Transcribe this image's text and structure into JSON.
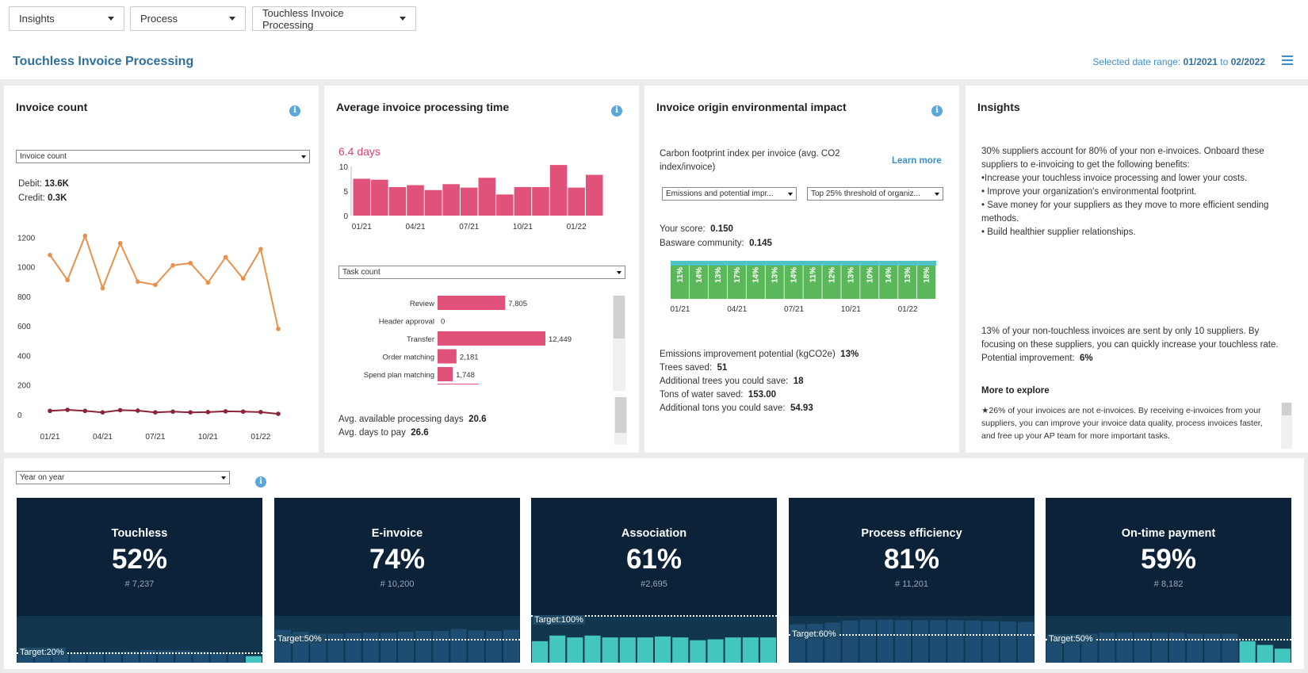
{
  "nav": {
    "dropdowns": [
      "Insights",
      "Process",
      "Touchless Invoice Processing"
    ]
  },
  "header": {
    "title": "Touchless Invoice Processing",
    "date_label": "Selected date range:",
    "date_from": "01/2021",
    "date_to_sep": "to",
    "date_to": "02/2022"
  },
  "invoice_count": {
    "title": "Invoice count",
    "select": "Invoice count",
    "debit_label": "Debit:",
    "debit_value": "13.6K",
    "credit_label": "Credit:",
    "credit_value": "0.3K",
    "chart_data": {
      "type": "line",
      "x": [
        "01/21",
        "02/21",
        "03/21",
        "04/21",
        "05/21",
        "06/21",
        "07/21",
        "08/21",
        "09/21",
        "10/21",
        "11/21",
        "12/21",
        "01/22",
        "02/22"
      ],
      "x_ticks": [
        "01/21",
        "04/21",
        "07/21",
        "10/21",
        "01/22"
      ],
      "y_ticks": [
        "0",
        "200",
        "400",
        "600",
        "800",
        "1000",
        "1200"
      ],
      "ylim": [
        0,
        1250
      ],
      "series": [
        {
          "values": [
            1080,
            910,
            1210,
            855,
            1160,
            900,
            878,
            1010,
            1025,
            893,
            1065,
            920,
            1120,
            580
          ],
          "color": "#e8914a"
        },
        {
          "values": [
            25,
            32,
            25,
            15,
            30,
            27,
            15,
            20,
            15,
            17,
            22,
            20,
            17,
            5
          ],
          "color": "#8b2339"
        }
      ]
    }
  },
  "processing_time": {
    "title": "Average invoice processing time",
    "headline": "6.4 days",
    "chart_data": {
      "type": "bar",
      "categories": [
        "01/21",
        "02/21",
        "03/21",
        "04/21",
        "05/21",
        "06/21",
        "07/21",
        "08/21",
        "09/21",
        "10/21",
        "11/21",
        "12/21",
        "01/22",
        "02/22"
      ],
      "x_ticks": [
        "01/21",
        "04/21",
        "07/21",
        "10/21",
        "01/22"
      ],
      "y_ticks": [
        "0",
        "5",
        "10"
      ],
      "ylim": [
        0,
        10
      ],
      "values": [
        7.5,
        7.3,
        5.8,
        6.2,
        5.2,
        6.4,
        5.7,
        7.7,
        4.3,
        5.8,
        5.8,
        10.3,
        5.7,
        8.3
      ],
      "color": "#e0527a"
    },
    "select": "Task count",
    "task_chart": {
      "type": "bar",
      "categories": [
        "Review",
        "Header approval",
        "Transfer",
        "Order matching",
        "Spend plan matching"
      ],
      "values": [
        7805,
        0,
        12449,
        2181,
        1748
      ],
      "labels": [
        "7,805",
        "0",
        "12,449",
        "2,181",
        "1,748"
      ],
      "xlim": [
        0,
        12449
      ],
      "color": "#e0527a"
    },
    "avail_label": "Avg. available processing days",
    "avail_value": "20.6",
    "pay_label": "Avg. days to pay",
    "pay_value": "26.6"
  },
  "env_impact": {
    "title": "Invoice origin environmental impact",
    "subtitle": "Carbon footprint index per invoice (avg. CO2 index/invoice)",
    "learn_more": "Learn more",
    "select1": "Emissions and potential impr...",
    "select2": "Top 25% threshold of organiz...",
    "score_label": "Your score:",
    "score_value": "0.150",
    "community_label": "Basware community:",
    "community_value": "0.145",
    "chart_data": {
      "type": "bar",
      "categories": [
        "01/21",
        "02/21",
        "03/21",
        "04/21",
        "05/21",
        "06/21",
        "07/21",
        "08/21",
        "09/21",
        "10/21",
        "11/21",
        "12/21",
        "01/22",
        "02/22"
      ],
      "x_ticks": [
        "01/21",
        "04/21",
        "07/21",
        "10/21",
        "01/22"
      ],
      "values": [
        11,
        14,
        13,
        17,
        14,
        13,
        14,
        11,
        12,
        13,
        10,
        14,
        13,
        18
      ],
      "labels": [
        "11%",
        "14%",
        "13%",
        "17%",
        "14%",
        "13%",
        "14%",
        "11%",
        "12%",
        "13%",
        "10%",
        "14%",
        "13%",
        "18%"
      ],
      "colors": {
        "base": "#5bb85a",
        "top": "#4fc3c3"
      }
    },
    "potential_label": "Emissions improvement potential (kgCO2e)",
    "potential_value": "13%",
    "trees_label": "Trees saved:",
    "trees_value": "51",
    "add_trees_label": "Additional trees you could save:",
    "add_trees_value": "18",
    "water_label": "Tons of water saved:",
    "water_value": "153.00",
    "add_water_label": "Additional tons you could save:",
    "add_water_value": "54.93"
  },
  "insights": {
    "title": "Insights",
    "para1": "30% suppliers account for 80% of your non e-invoices. Onboard these suppliers to e-invoicing to get the following benefits:",
    "bullets": [
      "•Increase your touchless invoice processing and lower your costs.",
      "• Improve your organization's environmental footprint.",
      "• Save money for your suppliers as they move to more efficient sending methods.",
      "• Build healthier supplier relationships."
    ],
    "para2": "13% of your non-touchless invoices are sent by only 10 suppliers. By focusing on these suppliers, you can quickly increase your touchless rate. Potential improvement:",
    "para2_value": "6%",
    "more_title": "More to explore",
    "more_text": "★26% of your invoices are not e-invoices. By receiving e-invoices from your suppliers, you can improve your invoice data quality, process invoices faster, and free up your AP team for more important tasks."
  },
  "kpis": {
    "select": "Year on year",
    "cards": [
      {
        "title": "Touchless",
        "value": "52%",
        "count": "# 7,237",
        "target_label": "Target:20%",
        "target": 20,
        "bars": [
          18,
          19,
          21,
          22,
          23,
          23,
          24,
          27,
          26,
          26,
          24,
          22,
          20,
          14
        ],
        "highlight": [
          13
        ]
      },
      {
        "title": "E-invoice",
        "value": "74%",
        "count": "# 10,200",
        "target_label": "Target:50%",
        "target": 50,
        "bars": [
          70,
          66,
          62,
          62,
          63,
          64,
          64,
          66,
          68,
          68,
          72,
          69,
          68,
          70
        ],
        "highlight": []
      },
      {
        "title": "Association",
        "value": "61%",
        "count": "#2,695",
        "target_label": "Target:100%",
        "target": 100,
        "bars": [
          46,
          58,
          54,
          58,
          54,
          54,
          54,
          56,
          54,
          48,
          50,
          54,
          54,
          54
        ],
        "highlight": [
          0,
          1,
          2,
          3,
          4,
          5,
          6,
          7,
          8,
          9,
          10,
          11,
          12,
          13
        ]
      },
      {
        "title": "Process efficiency",
        "value": "81%",
        "count": "# 11,201",
        "target_label": "Target:60%",
        "target": 60,
        "bars": [
          82,
          83,
          86,
          90,
          92,
          92,
          91,
          91,
          91,
          91,
          90,
          89,
          88,
          87
        ],
        "highlight": []
      },
      {
        "title": "On-time payment",
        "value": "59%",
        "count": "# 8,182",
        "target_label": "Target:50%",
        "target": 50,
        "bars": [
          60,
          60,
          62,
          64,
          64,
          64,
          64,
          64,
          62,
          62,
          62,
          46,
          38,
          30
        ],
        "highlight": [
          11,
          12,
          13
        ]
      }
    ]
  }
}
